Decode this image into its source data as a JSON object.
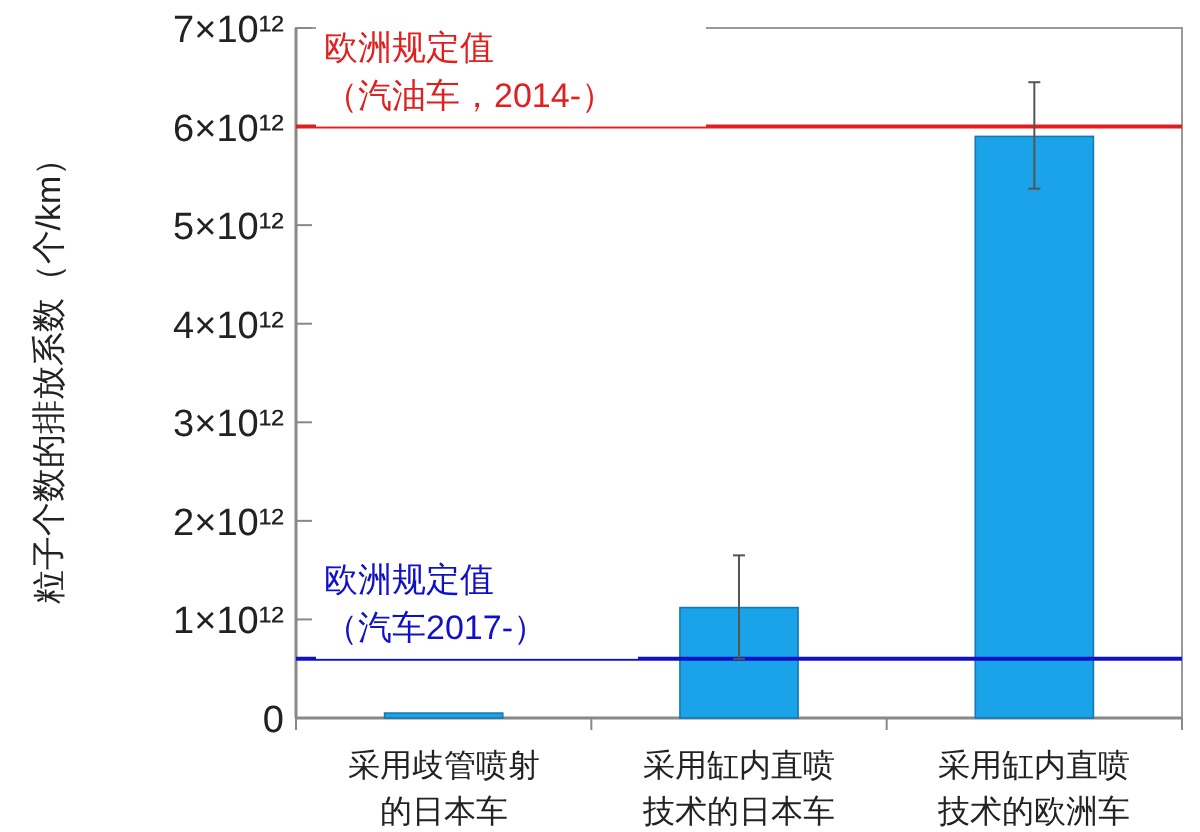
{
  "chart_data": {
    "type": "bar",
    "ylabel": "粒子个数的排放系数（个/km）",
    "categories": [
      "采用歧管喷射的日本车",
      "采用缸内直喷技术的日本车",
      "采用缸内直喷技术的欧洲车"
    ],
    "values": [
      50000000000.0,
      1120000000000.0,
      5900000000000.0
    ],
    "errors": [
      null,
      [
        600000000000.0,
        1650000000000.0
      ],
      [
        5370000000000.0,
        6450000000000.0
      ]
    ],
    "color": "#1aa3e8",
    "ylim": [
      0,
      7000000000000.0
    ],
    "yticks": [
      {
        "value": 0,
        "label": "0"
      },
      {
        "value": 1000000000000.0,
        "label": "1×10¹²"
      },
      {
        "value": 2000000000000.0,
        "label": "2×10¹²"
      },
      {
        "value": 3000000000000.0,
        "label": "3×10¹²"
      },
      {
        "value": 4000000000000.0,
        "label": "4×10¹²"
      },
      {
        "value": 5000000000000.0,
        "label": "5×10¹²"
      },
      {
        "value": 6000000000000.0,
        "label": "6×10¹²"
      },
      {
        "value": 7000000000000.0,
        "label": "7×10¹²"
      }
    ],
    "ref_lines": [
      {
        "axis": "y",
        "value": 6000000000000.0,
        "label": "欧洲规定值（汽油车，2014-）",
        "color": "#e02020"
      },
      {
        "axis": "y",
        "value": 600000000000.0,
        "label": "欧洲规定值（汽车2017-）",
        "color": "#1010c8"
      }
    ],
    "grid": false
  }
}
